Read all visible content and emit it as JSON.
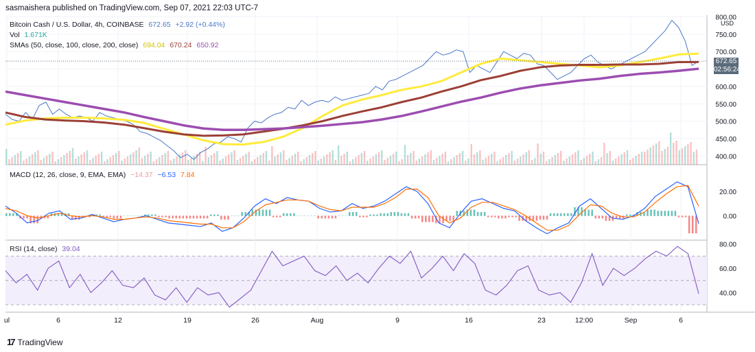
{
  "header": {
    "publisher": "sasmaishera published on TradingView.com, Sep 07, 2021 22:03 UTC-7"
  },
  "footer": {
    "brand": "TradingView",
    "logo_glyph": "17"
  },
  "legend": {
    "symbol": "Bitcoin Cash / U.S. Dollar, 4h, COINBASE",
    "price": "672.65",
    "change": "+2.92 (+0.44%)",
    "vol_label": "Vol",
    "vol_value": "1.671K",
    "sma_label": "SMAs (50, close, 100, close, 200, close)",
    "sma50": "694.04",
    "sma100": "670.24",
    "sma200": "650.92",
    "macd_label": "MACD (12, 26, close, 9, EMA, EMA)",
    "macd_hist": "−14.37",
    "macd_line": "−6.53",
    "macd_signal": "7.84",
    "rsi_label": "RSI (14, close)",
    "rsi_value": "39.04"
  },
  "price_axis": {
    "currency": "USD",
    "last_price": "672.65",
    "countdown": "02:56:24"
  },
  "colors": {
    "price_line": "#4a77c9",
    "sma50": "#ffeb3b",
    "sma100": "#9b3f35",
    "sma200": "#9c4db0",
    "vol_up": "#26a69a",
    "vol_down": "#ef5350",
    "macd_line": "#2962ff",
    "macd_signal": "#ff6d00",
    "rsi": "#7e57c2",
    "rsi_band": "#f3eefb",
    "price_tag": "#5a6b7b"
  },
  "chart_data": [
    {
      "type": "line",
      "title": "Bitcoin Cash / U.S. Dollar, 4h, COINBASE",
      "x_ticks": [
        "ul",
        "6",
        "12",
        "19",
        "26",
        "Aug",
        "9",
        "16",
        "23",
        "12:00",
        "Sep",
        "6"
      ],
      "y_ticks": [
        400,
        450,
        500,
        550,
        600,
        650,
        700,
        750,
        800
      ],
      "ylim": [
        375,
        805
      ],
      "series": [
        {
          "name": "Bitcoin Cash",
          "values": [
            520,
            505,
            500,
            525,
            505,
            545,
            555,
            520,
            535,
            520,
            510,
            515,
            510,
            500,
            525,
            515,
            510,
            505,
            500,
            490,
            470,
            465,
            455,
            445,
            430,
            415,
            395,
            405,
            390,
            410,
            420,
            435,
            440,
            455,
            450,
            440,
            480,
            500,
            495,
            510,
            520,
            525,
            540,
            535,
            560,
            545,
            555,
            560,
            555,
            570,
            560,
            565,
            570,
            575,
            580,
            600,
            590,
            615,
            620,
            630,
            640,
            650,
            660,
            680,
            700,
            690,
            695,
            705,
            700,
            640,
            660,
            650,
            640,
            670,
            700,
            690,
            680,
            695,
            690,
            665,
            660,
            640,
            620,
            630,
            640,
            660,
            680,
            690,
            670,
            660,
            650,
            660,
            670,
            680,
            690,
            700,
            720,
            740,
            760,
            790,
            770,
            730,
            660,
            672.65
          ]
        },
        {
          "name": "SMA 50",
          "values": [
            490,
            502,
            508,
            510,
            510,
            508,
            504,
            495,
            478,
            462,
            445,
            434,
            433,
            440,
            455,
            480,
            515,
            545,
            562,
            575,
            590,
            600,
            615,
            640,
            665,
            680,
            675,
            670,
            665,
            660,
            655,
            660,
            670,
            680,
            692,
            694.04
          ]
        },
        {
          "name": "SMA 100",
          "values": [
            525,
            512,
            505,
            502,
            500,
            496,
            490,
            480,
            470,
            462,
            458,
            459,
            462,
            470,
            478,
            488,
            500,
            515,
            528,
            540,
            555,
            568,
            585,
            600,
            618,
            630,
            645,
            655,
            660,
            662,
            662,
            663,
            663,
            665,
            670,
            670.24
          ]
        },
        {
          "name": "SMA 200",
          "values": [
            585,
            575,
            565,
            555,
            545,
            535,
            525,
            512,
            500,
            488,
            479,
            475,
            475,
            477,
            479,
            483,
            487,
            492,
            497,
            505,
            515,
            528,
            542,
            556,
            568,
            582,
            594,
            603,
            610,
            617,
            622,
            630,
            636,
            640,
            645,
            650.92
          ]
        }
      ]
    },
    {
      "type": "line",
      "title": "MACD (12, 26, close, 9, EMA, EMA)",
      "y_ticks": [
        0,
        20
      ],
      "ylim": [
        -18,
        32
      ],
      "series": [
        {
          "name": "MACD",
          "values": [
            8,
            2,
            -6,
            -4,
            2,
            4,
            -3,
            -2,
            1,
            -2,
            -5,
            -3,
            -2,
            0,
            -3,
            -6,
            -7,
            -8,
            -9,
            -6,
            -13,
            -10,
            -2,
            8,
            14,
            10,
            15,
            13,
            12,
            6,
            3,
            4,
            10,
            6,
            8,
            12,
            18,
            24,
            20,
            10,
            -6,
            -10,
            2,
            12,
            14,
            10,
            6,
            4,
            -4,
            -10,
            -15,
            -10,
            -6,
            8,
            14,
            6,
            -2,
            -3,
            0,
            6,
            16,
            22,
            28,
            24,
            -6.53
          ]
        },
        {
          "name": "Signal",
          "values": [
            6,
            4,
            0,
            -2,
            0,
            2,
            0,
            -1,
            0,
            -1,
            -3,
            -3,
            -2,
            -1,
            -2,
            -4,
            -5,
            -6,
            -7,
            -7,
            -10,
            -10,
            -5,
            3,
            9,
            11,
            13,
            13,
            12,
            8,
            5,
            4,
            7,
            7,
            7,
            10,
            15,
            22,
            22,
            15,
            0,
            -6,
            -2,
            7,
            11,
            11,
            8,
            5,
            0,
            -6,
            -12,
            -12,
            -8,
            1,
            9,
            8,
            2,
            -1,
            -1,
            3,
            11,
            18,
            24,
            25,
            7.84
          ]
        }
      ]
    },
    {
      "type": "line",
      "title": "RSI (14, close)",
      "y_ticks": [
        40,
        60,
        80
      ],
      "ylim": [
        25,
        82
      ],
      "band": [
        30,
        70
      ],
      "series": [
        {
          "name": "RSI",
          "values": [
            58,
            48,
            55,
            42,
            60,
            66,
            44,
            55,
            40,
            48,
            58,
            46,
            44,
            52,
            38,
            34,
            44,
            32,
            44,
            38,
            40,
            28,
            35,
            42,
            58,
            74,
            62,
            66,
            70,
            58,
            54,
            62,
            50,
            56,
            48,
            60,
            70,
            64,
            74,
            52,
            60,
            70,
            58,
            72,
            64,
            42,
            38,
            46,
            58,
            62,
            42,
            38,
            40,
            32,
            48,
            72,
            46,
            60,
            54,
            60,
            68,
            74,
            70,
            78,
            72,
            39.04
          ]
        }
      ]
    }
  ]
}
